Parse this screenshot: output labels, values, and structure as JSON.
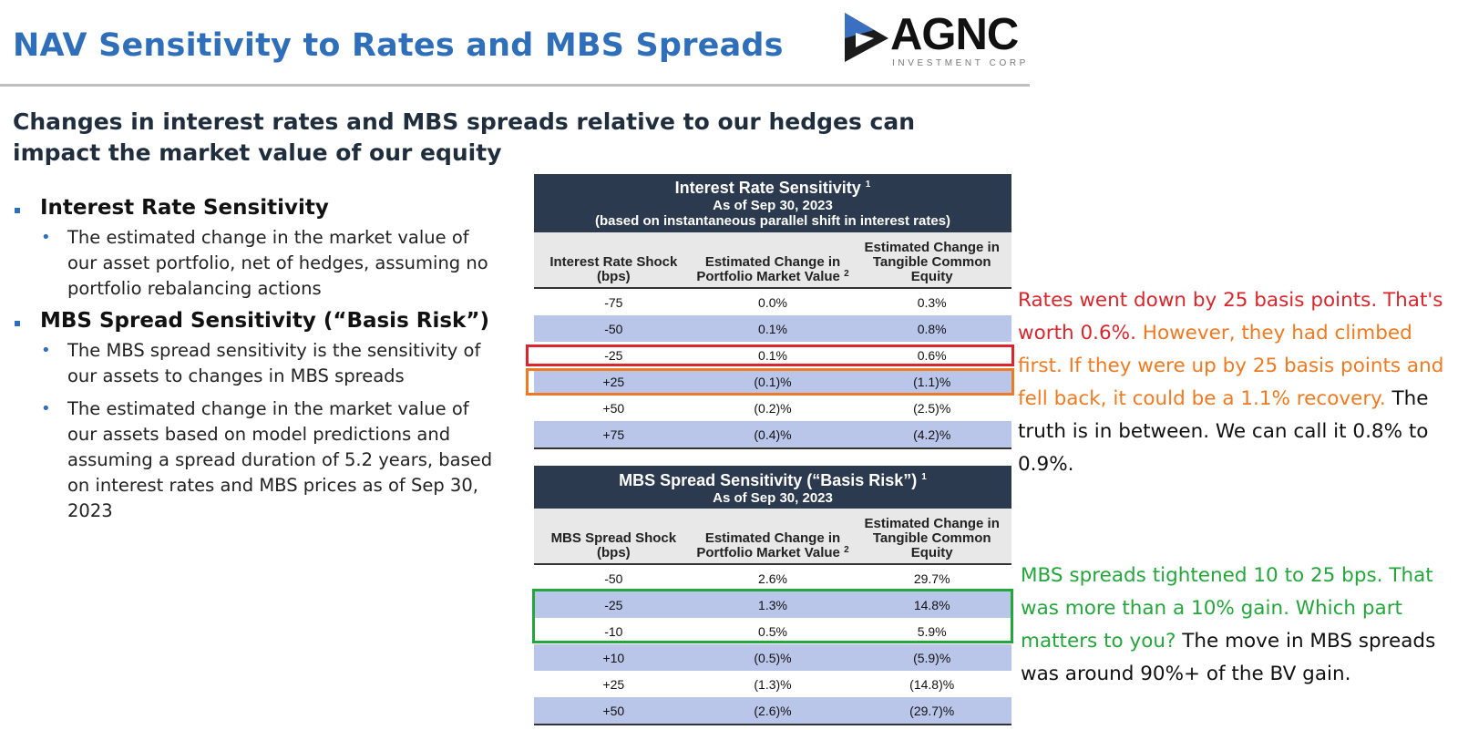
{
  "title": "NAV Sensitivity to Rates and MBS Spreads",
  "logo": {
    "word": "AGNC",
    "sub": "INVESTMENT CORP"
  },
  "subtitle": "Changes in interest rates and MBS spreads relative to our hedges can impact the market value of our equity",
  "bullets": {
    "irs_heading": "Interest Rate Sensitivity",
    "irs_text": "The estimated change in the market value of our asset portfolio, net of hedges, assuming no portfolio rebalancing actions",
    "mbs_heading": "MBS Spread Sensitivity (“Basis Risk”)",
    "mbs_text1": "The MBS spread sensitivity is the sensitivity of our assets to changes in MBS spreads",
    "mbs_text2": "The estimated change in the market value of our assets based on model predictions and assuming a spread duration of 5.2 years, based on interest rates and MBS prices as of Sep 30, 2023"
  },
  "rate_table": {
    "title": "Interest Rate Sensitivity",
    "title_sup": "1",
    "asof": "As of Sep 30, 2023",
    "note": "(based on instantaneous parallel shift in interest rates)",
    "col1": "Interest Rate Shock (bps)",
    "col2": "Estimated Change in Portfolio Market Value",
    "col2_sup": "2",
    "col3": "Estimated Change in Tangible Common Equity",
    "rows": [
      {
        "shock": "-75",
        "pmv": "0.0%",
        "tce": "0.3%"
      },
      {
        "shock": "-50",
        "pmv": "0.1%",
        "tce": "0.8%"
      },
      {
        "shock": "-25",
        "pmv": "0.1%",
        "tce": "0.6%"
      },
      {
        "shock": "+25",
        "pmv": "(0.1)%",
        "tce": "(1.1)%"
      },
      {
        "shock": "+50",
        "pmv": "(0.2)%",
        "tce": "(2.5)%"
      },
      {
        "shock": "+75",
        "pmv": "(0.4)%",
        "tce": "(4.2)%"
      }
    ]
  },
  "mbs_table": {
    "title": "MBS Spread Sensitivity (“Basis Risk”)",
    "title_sup": "1",
    "asof": "As of Sep 30, 2023",
    "col1": "MBS Spread Shock (bps)",
    "col2": "Estimated Change in Portfolio Market Value",
    "col2_sup": "2",
    "col3": "Estimated Change in Tangible Common Equity",
    "rows": [
      {
        "shock": "-50",
        "pmv": "2.6%",
        "tce": "29.7%"
      },
      {
        "shock": "-25",
        "pmv": "1.3%",
        "tce": "14.8%"
      },
      {
        "shock": "-10",
        "pmv": "0.5%",
        "tce": "5.9%"
      },
      {
        "shock": "+10",
        "pmv": "(0.5)%",
        "tce": "(5.9)%"
      },
      {
        "shock": "+25",
        "pmv": "(1.3)%",
        "tce": "(14.8)%"
      },
      {
        "shock": "+50",
        "pmv": "(2.6)%",
        "tce": "(29.7)%"
      }
    ]
  },
  "annotations": {
    "rate_red": "Rates went down by 25 basis points. That's worth 0.6%.",
    "rate_orange": "However, they had climbed first. If they were up by 25 basis points and fell back, it could be a 1.1% recovery.",
    "rate_black": "The truth is in between. We can call it 0.8% to 0.9%.",
    "mbs_green": "MBS spreads tightened 10 to 25 bps. That was more than a 10% gain. Which part matters to you?",
    "mbs_black": "The move in MBS spreads was around 90%+ of the BV gain."
  },
  "colors": {
    "title": "#2f6fba",
    "header": "#2b3a4e",
    "alt_row": "#b9c6ea",
    "red": "#d9262c",
    "orange": "#ef7a21",
    "green": "#24a63c"
  },
  "icons": {
    "logo": "agnc-arrow-logo-icon"
  }
}
